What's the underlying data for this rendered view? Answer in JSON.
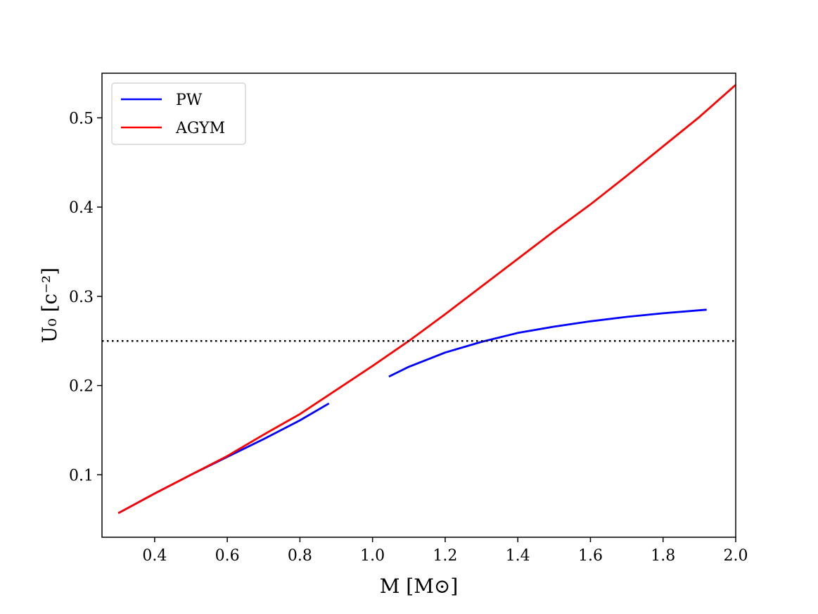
{
  "chart_data": {
    "type": "line",
    "title": "",
    "xlabel": "M [M⊙]",
    "ylabel": "U₀ [c⁻²]",
    "xlim": [
      0.255,
      2.0
    ],
    "ylim": [
      0.03,
      0.55
    ],
    "x_ticks": [
      0.4,
      0.6,
      0.8,
      1.0,
      1.2,
      1.4,
      1.6,
      1.8,
      2.0
    ],
    "x_tick_labels": [
      "0.4",
      "0.6",
      "0.8",
      "1.0",
      "1.2",
      "1.4",
      "1.6",
      "1.8",
      "2.0"
    ],
    "y_ticks": [
      0.1,
      0.2,
      0.3,
      0.4,
      0.5
    ],
    "y_tick_labels": [
      "0.1",
      "0.2",
      "0.3",
      "0.4",
      "0.5"
    ],
    "grid": false,
    "legend_position": "top-left",
    "series": [
      {
        "name": "PW",
        "color": "#0000ff",
        "segments": [
          {
            "x": [
              0.3,
              0.4,
              0.5,
              0.6,
              0.7,
              0.8,
              0.88
            ],
            "y": [
              0.057,
              0.079,
              0.1,
              0.12,
              0.14,
              0.161,
              0.18
            ]
          },
          {
            "x": [
              1.045,
              1.1,
              1.2,
              1.3,
              1.4,
              1.5,
              1.6,
              1.7,
              1.8,
              1.92
            ],
            "y": [
              0.21,
              0.221,
              0.237,
              0.249,
              0.259,
              0.266,
              0.272,
              0.277,
              0.281,
              0.285
            ]
          }
        ]
      },
      {
        "name": "AGYM",
        "color": "#ff0000",
        "segments": [
          {
            "x": [
              0.3,
              0.4,
              0.5,
              0.6,
              0.7,
              0.8,
              0.9,
              1.0,
              1.1,
              1.2,
              1.3,
              1.4,
              1.5,
              1.6,
              1.7,
              1.8,
              1.9,
              2.0
            ],
            "y": [
              0.057,
              0.079,
              0.1,
              0.121,
              0.145,
              0.168,
              0.195,
              0.222,
              0.25,
              0.28,
              0.311,
              0.342,
              0.373,
              0.403,
              0.435,
              0.468,
              0.501,
              0.537
            ]
          }
        ]
      }
    ],
    "reference_lines": [
      {
        "orientation": "horizontal",
        "y": 0.25,
        "style": "dotted",
        "color": "#000000"
      }
    ]
  }
}
